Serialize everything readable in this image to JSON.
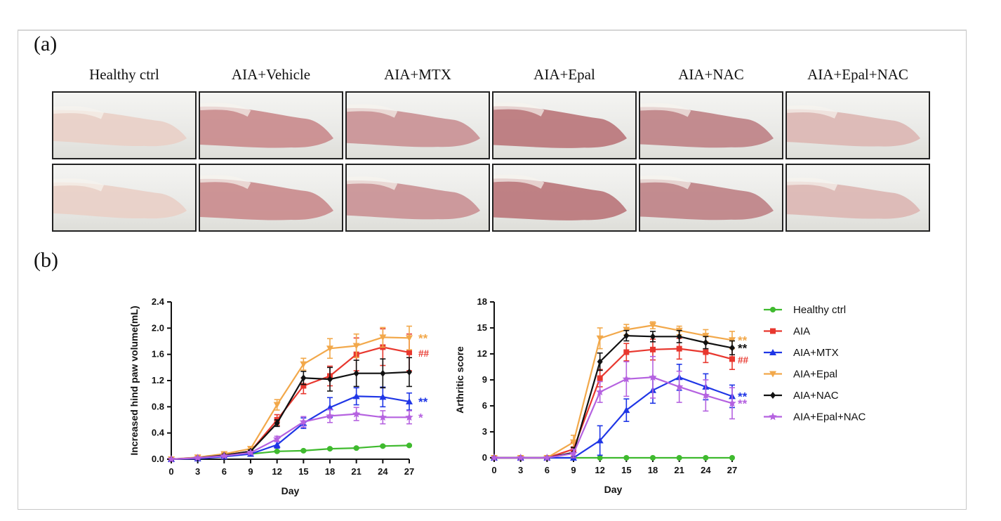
{
  "panel_a_label": "(a)",
  "panel_b_label": "(b)",
  "groups": [
    "Healthy ctrl",
    "AIA+Vehicle",
    "AIA+MTX",
    "AIA+Epal",
    "AIA+NAC",
    "AIA+Epal+NAC"
  ],
  "chart_data": [
    {
      "type": "line",
      "xlabel": "Day",
      "ylabel": "Increased hind paw volume(mL)",
      "x": [
        0,
        3,
        6,
        9,
        12,
        15,
        18,
        21,
        24,
        27
      ],
      "xticks": [
        "0",
        "3",
        "6",
        "9",
        "12",
        "15",
        "18",
        "21",
        "24",
        "27"
      ],
      "ylim": [
        0,
        2.4
      ],
      "yticks": [
        "0.0",
        "0.4",
        "0.8",
        "1.2",
        "1.6",
        "2.0",
        "2.4"
      ],
      "series": [
        {
          "name": "Healthy ctrl",
          "color": "#3fba2e",
          "marker": "circle",
          "values": [
            0,
            0.02,
            0.05,
            0.08,
            0.12,
            0.13,
            0.16,
            0.17,
            0.2,
            0.21
          ],
          "err": [
            0,
            0.01,
            0.01,
            0.01,
            0.01,
            0.01,
            0.01,
            0.01,
            0.01,
            0.01
          ]
        },
        {
          "name": "AIA",
          "color": "#e8372e",
          "marker": "square",
          "values": [
            0,
            0.02,
            0.06,
            0.12,
            0.6,
            1.12,
            1.27,
            1.6,
            1.71,
            1.63
          ],
          "err": [
            0,
            0.01,
            0.02,
            0.03,
            0.08,
            0.12,
            0.15,
            0.25,
            0.28,
            0.28
          ]
        },
        {
          "name": "AIA+MTX",
          "color": "#1f36e6",
          "marker": "triangle-up",
          "values": [
            0,
            0.01,
            0.04,
            0.08,
            0.22,
            0.55,
            0.79,
            0.96,
            0.95,
            0.88
          ],
          "err": [
            0,
            0.01,
            0.01,
            0.02,
            0.05,
            0.08,
            0.15,
            0.13,
            0.15,
            0.13
          ]
        },
        {
          "name": "AIA+Epal",
          "color": "#f2a84a",
          "marker": "triangle-down",
          "values": [
            0,
            0.03,
            0.08,
            0.16,
            0.83,
            1.45,
            1.69,
            1.73,
            1.86,
            1.85
          ],
          "err": [
            0,
            0.01,
            0.02,
            0.03,
            0.08,
            0.09,
            0.15,
            0.18,
            0.15,
            0.18
          ]
        },
        {
          "name": "AIA+NAC",
          "color": "#111111",
          "marker": "diamond",
          "values": [
            0,
            0.02,
            0.06,
            0.12,
            0.55,
            1.24,
            1.22,
            1.31,
            1.31,
            1.33
          ],
          "err": [
            0,
            0.01,
            0.01,
            0.02,
            0.05,
            0.1,
            0.18,
            0.2,
            0.22,
            0.22
          ]
        },
        {
          "name": "AIA+Epal+NAC",
          "color": "#b562e0",
          "marker": "star",
          "values": [
            0,
            0.02,
            0.05,
            0.1,
            0.31,
            0.57,
            0.66,
            0.69,
            0.64,
            0.64
          ],
          "err": [
            0,
            0.01,
            0.01,
            0.02,
            0.04,
            0.08,
            0.1,
            0.1,
            0.1,
            0.1
          ]
        }
      ],
      "annotations": [
        {
          "text": "**",
          "color": "#f2a84a",
          "y": 1.85
        },
        {
          "text": "##",
          "color": "#e8372e",
          "y": 1.63
        },
        {
          "text": "**",
          "color": "#1f36e6",
          "y": 0.88
        },
        {
          "text": "*",
          "color": "#b562e0",
          "y": 0.64
        }
      ]
    },
    {
      "type": "line",
      "xlabel": "Day",
      "ylabel": "Arthritic score",
      "x": [
        0,
        3,
        6,
        9,
        12,
        15,
        18,
        21,
        24,
        27
      ],
      "xticks": [
        "0",
        "3",
        "6",
        "9",
        "12",
        "15",
        "18",
        "21",
        "24",
        "27"
      ],
      "ylim": [
        0,
        18
      ],
      "yticks": [
        "0",
        "3",
        "6",
        "9",
        "12",
        "15",
        "18"
      ],
      "series": [
        {
          "name": "Healthy ctrl",
          "color": "#3fba2e",
          "marker": "circle",
          "values": [
            0,
            0,
            0,
            0,
            0,
            0,
            0,
            0,
            0,
            0
          ],
          "err": [
            0,
            0,
            0,
            0,
            0,
            0,
            0,
            0,
            0,
            0
          ]
        },
        {
          "name": "AIA",
          "color": "#e8372e",
          "marker": "square",
          "values": [
            0,
            0,
            0,
            1.0,
            9.2,
            12.2,
            12.5,
            12.6,
            12.2,
            11.4
          ],
          "err": [
            0,
            0,
            0,
            0.8,
            1.0,
            1.0,
            1.2,
            1.2,
            1.2,
            1.2
          ]
        },
        {
          "name": "AIA+MTX",
          "color": "#1f36e6",
          "marker": "triangle-up",
          "values": [
            0,
            0,
            0,
            0,
            2.0,
            5.5,
            7.8,
            9.3,
            8.2,
            7.1
          ],
          "err": [
            0,
            0,
            0,
            0,
            1.7,
            1.3,
            1.5,
            1.5,
            1.5,
            1.3
          ]
        },
        {
          "name": "AIA+Epal",
          "color": "#f2a84a",
          "marker": "triangle-down",
          "values": [
            0,
            0,
            0,
            1.8,
            13.8,
            14.8,
            15.3,
            14.7,
            14.1,
            13.6
          ],
          "err": [
            0,
            0,
            0,
            0.8,
            1.2,
            0.6,
            0.4,
            0.5,
            0.7,
            1.0
          ]
        },
        {
          "name": "AIA+NAC",
          "color": "#111111",
          "marker": "diamond",
          "values": [
            0,
            0,
            0,
            0.6,
            11.1,
            14.1,
            14.0,
            14.0,
            13.3,
            12.7
          ],
          "err": [
            0,
            0,
            0,
            0.6,
            1.0,
            0.6,
            0.6,
            0.7,
            0.7,
            0.8
          ]
        },
        {
          "name": "AIA+Epal+NAC",
          "color": "#b562e0",
          "marker": "star",
          "values": [
            0,
            0,
            0,
            0.5,
            7.6,
            9.1,
            9.3,
            8.2,
            7.2,
            6.3
          ],
          "err": [
            0,
            0,
            0,
            0.5,
            1.2,
            2.0,
            2.4,
            1.8,
            1.8,
            1.8
          ]
        }
      ],
      "annotations": [
        {
          "text": "**",
          "color": "#f2a84a",
          "y": 13.6
        },
        {
          "text": "**",
          "color": "#111111",
          "y": 12.7
        },
        {
          "text": "##",
          "color": "#e8372e",
          "y": 11.4
        },
        {
          "text": "**",
          "color": "#1f36e6",
          "y": 7.1
        },
        {
          "text": "**",
          "color": "#b562e0",
          "y": 6.3
        }
      ]
    }
  ],
  "legend": [
    {
      "label": "Healthy ctrl",
      "color": "#3fba2e",
      "marker": "circle"
    },
    {
      "label": "AIA",
      "color": "#e8372e",
      "marker": "square"
    },
    {
      "label": "AIA+MTX",
      "color": "#1f36e6",
      "marker": "triangle-up"
    },
    {
      "label": "AIA+Epal",
      "color": "#f2a84a",
      "marker": "triangle-down"
    },
    {
      "label": "AIA+NAC",
      "color": "#111111",
      "marker": "diamond"
    },
    {
      "label": "AIA+Epal+NAC",
      "color": "#b562e0",
      "marker": "star"
    }
  ]
}
